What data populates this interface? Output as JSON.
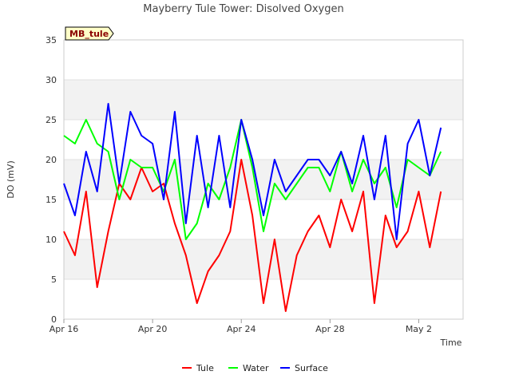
{
  "chart_data": {
    "type": "line",
    "title": "Mayberry Tule Tower: Disolved Oxygen",
    "xlabel": "Time",
    "ylabel": "DO (mV)",
    "site_tag": "MB_tule",
    "xlim": [
      0,
      18
    ],
    "ylim": [
      0,
      35
    ],
    "yticks": [
      0,
      5,
      10,
      15,
      20,
      25,
      30,
      35
    ],
    "xticks": [
      {
        "value": 0,
        "label": "Apr 16"
      },
      {
        "value": 4,
        "label": "Apr 20"
      },
      {
        "value": 8,
        "label": "Apr 24"
      },
      {
        "value": 12,
        "label": "Apr 28"
      },
      {
        "value": 16,
        "label": "May 2"
      }
    ],
    "x": [
      0.0,
      0.5,
      1.0,
      1.5,
      2.0,
      2.5,
      3.0,
      3.5,
      4.0,
      4.5,
      5.0,
      5.5,
      6.0,
      6.5,
      7.0,
      7.5,
      8.0,
      8.5,
      9.0,
      9.5,
      10.0,
      10.5,
      11.0,
      11.5,
      12.0,
      12.5,
      13.0,
      13.5,
      14.0,
      14.5,
      15.0,
      15.5,
      16.0,
      16.5,
      17.0
    ],
    "series": [
      {
        "name": "Tule",
        "color": "#ff0000",
        "values": [
          11,
          8,
          16,
          4,
          11,
          17,
          15,
          19,
          16,
          17,
          12,
          8,
          2,
          6,
          8,
          11,
          20,
          13,
          2,
          10,
          1,
          8,
          11,
          13,
          9,
          15,
          11,
          16,
          2,
          13,
          9,
          11,
          16,
          9,
          16
        ]
      },
      {
        "name": "Water",
        "color": "#00ff00",
        "values": [
          23,
          22,
          25,
          22,
          21,
          15,
          20,
          19,
          19,
          16,
          20,
          10,
          12,
          17,
          15,
          19,
          25,
          19,
          11,
          17,
          15,
          17,
          19,
          19,
          16,
          21,
          16,
          20,
          17,
          19,
          14,
          20,
          19,
          18,
          21
        ]
      },
      {
        "name": "Surface",
        "color": "#0000ff",
        "values": [
          17,
          13,
          21,
          16,
          27,
          17,
          26,
          23,
          22,
          15,
          26,
          12,
          23,
          14,
          23,
          14,
          25,
          20,
          13,
          20,
          16,
          18,
          20,
          20,
          18,
          21,
          17,
          23,
          15,
          23,
          10,
          22,
          25,
          18,
          24
        ]
      }
    ]
  }
}
